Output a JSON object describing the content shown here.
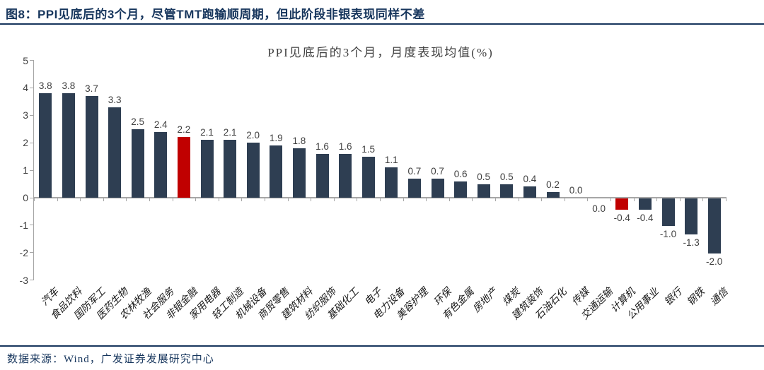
{
  "figure": {
    "title": "图8：PPI见底后的3个月，尽管TMT跑输顺周期，但此阶段非银表现同样不差",
    "source": "数据来源：Wind，广发证券发展研究中心"
  },
  "chart_data": {
    "type": "bar",
    "title": "PPI见底后的3个月，月度表现均值(%)",
    "xlabel": "",
    "ylabel": "",
    "categories": [
      "汽车",
      "食品饮料",
      "国防军工",
      "医药生物",
      "农林牧渔",
      "社会服务",
      "非银金融",
      "家用电器",
      "轻工制造",
      "机械设备",
      "商贸零售",
      "建筑材料",
      "纺织服饰",
      "基础化工",
      "电子",
      "电力设备",
      "美容护理",
      "环保",
      "有色金属",
      "房地产",
      "煤炭",
      "建筑装饰",
      "石油石化",
      "传媒",
      "交通运输",
      "计算机",
      "公用事业",
      "银行",
      "钢铁",
      "通信"
    ],
    "values": [
      3.8,
      3.8,
      3.7,
      3.3,
      2.5,
      2.4,
      2.2,
      2.1,
      2.1,
      2.0,
      1.9,
      1.8,
      1.6,
      1.6,
      1.5,
      1.1,
      0.7,
      0.7,
      0.6,
      0.5,
      0.5,
      0.4,
      0.2,
      0.0,
      0.0,
      -0.4,
      -0.4,
      -1.0,
      -1.3,
      -2.0
    ],
    "value_labels": [
      "3.8",
      "3.8",
      "3.7",
      "3.3",
      "2.5",
      "2.4",
      "2.2",
      "2.1",
      "2.1",
      "2.0",
      "1.9",
      "1.8",
      "1.6",
      "1.6",
      "1.5",
      "1.1",
      "0.7",
      "0.7",
      "0.6",
      "0.5",
      "0.5",
      "0.4",
      "0.2",
      "0.0",
      "0.0",
      "-0.4",
      "-0.4",
      "-1.0",
      "-1.3",
      "-2.0"
    ],
    "highlight_indices": [
      6,
      25
    ],
    "zero_label_below_indices": [
      24
    ],
    "ylim": [
      -3,
      5
    ],
    "yticks": [
      5,
      4,
      3,
      2,
      1,
      0,
      -1,
      -2,
      -3
    ],
    "grid": false,
    "legend": "none",
    "bar_color": "#2e3e52",
    "highlight_color": "#c00000",
    "axis_color": "#a6a6a6",
    "label_color": "#3f3f3f"
  }
}
